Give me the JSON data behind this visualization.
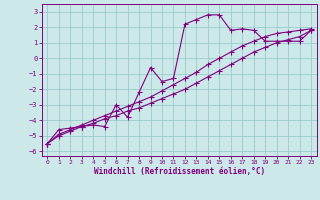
{
  "xlabel": "Windchill (Refroidissement éolien,°C)",
  "background_color": "#cce8e8",
  "grid_color": "#99cccc",
  "line_color": "#800080",
  "xlim": [
    -0.5,
    23.5
  ],
  "ylim": [
    -6.3,
    3.5
  ],
  "yticks": [
    -6,
    -5,
    -4,
    -3,
    -2,
    -1,
    0,
    1,
    2,
    3
  ],
  "xticks": [
    0,
    1,
    2,
    3,
    4,
    5,
    6,
    7,
    8,
    9,
    10,
    11,
    12,
    13,
    14,
    15,
    16,
    17,
    18,
    19,
    20,
    21,
    22,
    23
  ],
  "series1_x": [
    0,
    1,
    2,
    3,
    4,
    5,
    6,
    7,
    8,
    9,
    10,
    11,
    12,
    13,
    14,
    15,
    16,
    17,
    18,
    19,
    20,
    21,
    22,
    23
  ],
  "series1_y": [
    -5.5,
    -4.6,
    -4.5,
    -4.4,
    -4.3,
    -4.4,
    -3.0,
    -3.8,
    -2.2,
    -0.6,
    -1.5,
    -1.3,
    2.2,
    2.5,
    2.8,
    2.8,
    1.8,
    1.9,
    1.8,
    1.1,
    1.1,
    1.1,
    1.1,
    1.8
  ],
  "series2_x": [
    0,
    1,
    2,
    3,
    4,
    5,
    6,
    7,
    8,
    9,
    10,
    11,
    12,
    13,
    14,
    15,
    16,
    17,
    18,
    19,
    20,
    21,
    22,
    23
  ],
  "series2_y": [
    -5.5,
    -4.9,
    -4.6,
    -4.3,
    -4.0,
    -3.7,
    -3.4,
    -3.1,
    -2.8,
    -2.5,
    -2.1,
    -1.7,
    -1.3,
    -0.9,
    -0.4,
    0.0,
    0.4,
    0.8,
    1.1,
    1.4,
    1.6,
    1.7,
    1.8,
    1.9
  ],
  "series3_x": [
    0,
    1,
    2,
    3,
    4,
    5,
    6,
    7,
    8,
    9,
    10,
    11,
    12,
    13,
    14,
    15,
    16,
    17,
    18,
    19,
    20,
    21,
    22,
    23
  ],
  "series3_y": [
    -5.5,
    -5.0,
    -4.7,
    -4.4,
    -4.2,
    -3.9,
    -3.7,
    -3.4,
    -3.2,
    -2.9,
    -2.6,
    -2.3,
    -2.0,
    -1.6,
    -1.2,
    -0.8,
    -0.4,
    0.0,
    0.4,
    0.7,
    1.0,
    1.2,
    1.4,
    1.8
  ]
}
